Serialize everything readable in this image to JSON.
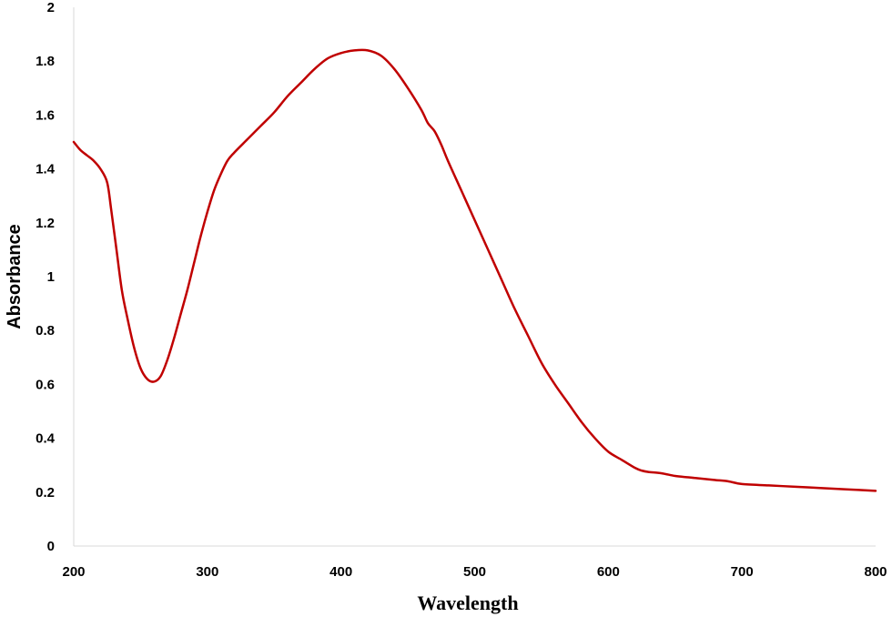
{
  "chart_data": {
    "type": "line",
    "title": "",
    "xlabel": "Wavelength",
    "ylabel": "Absorbance",
    "xlim": [
      200,
      800
    ],
    "ylim": [
      0,
      2
    ],
    "x_ticks": [
      200,
      300,
      400,
      500,
      600,
      700,
      800
    ],
    "x_tick_labels": [
      "200",
      "300",
      "400",
      "500",
      "600",
      "700",
      "800"
    ],
    "y_ticks": [
      0,
      0.2,
      0.4,
      0.6,
      0.8,
      1,
      1.2,
      1.4,
      1.6,
      1.8,
      2
    ],
    "y_tick_labels": [
      "0",
      "0.2",
      "0.4",
      "0.6",
      "0.8",
      "1",
      "1.2",
      "1.4",
      "1.6",
      "1.8",
      "2"
    ],
    "grid": false,
    "legend": "none",
    "series": [
      {
        "color": "#c00000",
        "x": [
          200,
          205,
          210,
          215,
          220,
          225,
          228,
          232,
          236,
          240,
          245,
          250,
          255,
          260,
          265,
          270,
          275,
          280,
          285,
          290,
          295,
          300,
          305,
          310,
          315,
          320,
          330,
          340,
          350,
          360,
          370,
          380,
          390,
          400,
          410,
          420,
          430,
          440,
          450,
          460,
          465,
          470,
          475,
          480,
          490,
          500,
          510,
          520,
          530,
          540,
          550,
          560,
          570,
          580,
          590,
          600,
          610,
          620,
          625,
          630,
          640,
          650,
          660,
          670,
          680,
          690,
          700,
          720,
          740,
          760,
          780,
          800
        ],
        "y": [
          1.5,
          1.47,
          1.45,
          1.43,
          1.4,
          1.35,
          1.25,
          1.1,
          0.95,
          0.85,
          0.74,
          0.66,
          0.62,
          0.61,
          0.63,
          0.69,
          0.77,
          0.86,
          0.95,
          1.05,
          1.15,
          1.24,
          1.32,
          1.38,
          1.43,
          1.46,
          1.51,
          1.56,
          1.61,
          1.67,
          1.72,
          1.77,
          1.81,
          1.83,
          1.84,
          1.84,
          1.82,
          1.77,
          1.7,
          1.62,
          1.57,
          1.54,
          1.49,
          1.43,
          1.32,
          1.21,
          1.1,
          0.99,
          0.88,
          0.78,
          0.68,
          0.6,
          0.53,
          0.46,
          0.4,
          0.35,
          0.32,
          0.29,
          0.28,
          0.275,
          0.27,
          0.26,
          0.255,
          0.25,
          0.245,
          0.24,
          0.23,
          0.225,
          0.22,
          0.215,
          0.21,
          0.205
        ]
      }
    ]
  }
}
